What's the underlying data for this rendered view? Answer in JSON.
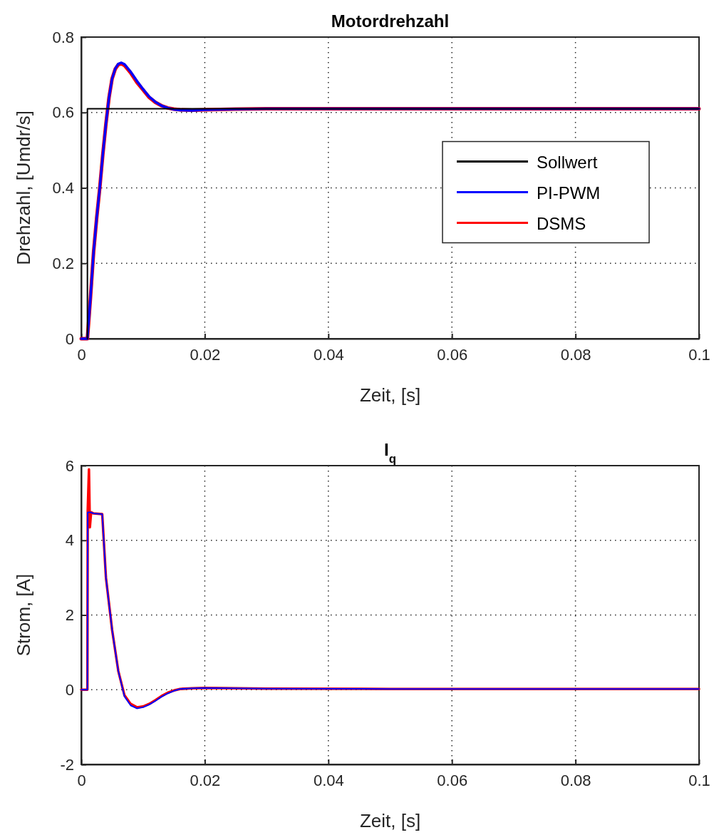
{
  "chart_data": [
    {
      "type": "line",
      "title": "Motordrehzahl",
      "xlabel": "Zeit, [s]",
      "ylabel": "Drehzahl, [Umdr/s]",
      "xlim": [
        0,
        0.1
      ],
      "xticks": [
        0,
        0.02,
        0.04,
        0.06,
        0.08,
        0.1
      ],
      "ylim": [
        0,
        0.8
      ],
      "yticks": [
        0,
        0.2,
        0.4,
        0.6,
        0.8
      ],
      "grid": true,
      "legend": "right",
      "line_style": "solid",
      "series": [
        {
          "name": "Sollwert",
          "color": "#000000",
          "x": [
            0.001,
            0.001,
            0.1
          ],
          "values": [
            0,
            0.61,
            0.61
          ]
        },
        {
          "name": "PI-PWM",
          "color": "#0000ff",
          "x": [
            0,
            0.001,
            0.0015,
            0.002,
            0.0025,
            0.003,
            0.0035,
            0.004,
            0.0045,
            0.005,
            0.0055,
            0.006,
            0.0065,
            0.007,
            0.008,
            0.009,
            0.01,
            0.011,
            0.012,
            0.013,
            0.014,
            0.015,
            0.016,
            0.018,
            0.02,
            0.025,
            0.03,
            0.1
          ],
          "values": [
            0,
            0,
            0.11,
            0.23,
            0.32,
            0.4,
            0.49,
            0.57,
            0.64,
            0.69,
            0.716,
            0.729,
            0.732,
            0.728,
            0.708,
            0.684,
            0.662,
            0.642,
            0.628,
            0.618,
            0.612,
            0.608,
            0.606,
            0.605,
            0.607,
            0.609,
            0.61,
            0.61
          ]
        },
        {
          "name": "DSMS",
          "color": "#ff0000",
          "x": [
            0,
            0.001,
            0.0015,
            0.002,
            0.0025,
            0.003,
            0.0035,
            0.004,
            0.0045,
            0.005,
            0.0055,
            0.006,
            0.0065,
            0.007,
            0.008,
            0.009,
            0.01,
            0.011,
            0.012,
            0.013,
            0.014,
            0.015,
            0.016,
            0.018,
            0.02,
            0.025,
            0.03,
            0.1
          ],
          "values": [
            0,
            0,
            0.11,
            0.23,
            0.32,
            0.4,
            0.49,
            0.57,
            0.64,
            0.69,
            0.715,
            0.727,
            0.729,
            0.725,
            0.705,
            0.68,
            0.66,
            0.64,
            0.627,
            0.618,
            0.612,
            0.609,
            0.607,
            0.606,
            0.607,
            0.609,
            0.61,
            0.61
          ]
        }
      ]
    },
    {
      "type": "line",
      "title": "I$_{q}$",
      "xlabel": "Zeit, [s]",
      "ylabel": "Strom, [A]",
      "xlim": [
        0,
        0.1
      ],
      "xticks": [
        0,
        0.02,
        0.04,
        0.06,
        0.08,
        0.1
      ],
      "ylim": [
        -2,
        6
      ],
      "yticks": [
        -2,
        0,
        2,
        4,
        6
      ],
      "grid": true,
      "line_style": "solid",
      "series": [
        {
          "color": "#0000ff",
          "x": [
            0,
            0.001,
            0.00105,
            0.0015,
            0.002,
            0.0034,
            0.004,
            0.005,
            0.006,
            0.007,
            0.008,
            0.009,
            0.01,
            0.011,
            0.012,
            0.013,
            0.014,
            0.015,
            0.016,
            0.018,
            0.02,
            0.03,
            0.05,
            0.07,
            0.1
          ],
          "values": [
            0,
            0,
            4.75,
            4.75,
            4.72,
            4.7,
            3.0,
            1.6,
            0.5,
            -0.18,
            -0.42,
            -0.5,
            -0.47,
            -0.4,
            -0.3,
            -0.19,
            -0.1,
            -0.03,
            0.02,
            0.04,
            0.05,
            0.03,
            0.02,
            0.02,
            0.02
          ]
        },
        {
          "color": "#ff0000",
          "x": [
            0,
            0.001,
            0.00105,
            0.00125,
            0.0014,
            0.0016,
            0.002,
            0.0034,
            0.004,
            0.005,
            0.006,
            0.007,
            0.008,
            0.009,
            0.01,
            0.011,
            0.012,
            0.013,
            0.014,
            0.015,
            0.016,
            0.018,
            0.02,
            0.03,
            0.05,
            0.07,
            0.1
          ],
          "values": [
            0,
            0,
            4.8,
            5.9,
            4.35,
            4.75,
            4.72,
            4.7,
            3.0,
            1.6,
            0.5,
            -0.15,
            -0.38,
            -0.47,
            -0.45,
            -0.38,
            -0.28,
            -0.17,
            -0.08,
            -0.02,
            0.02,
            0.04,
            0.05,
            0.03,
            0.02,
            0.02,
            0.02
          ]
        }
      ]
    }
  ]
}
